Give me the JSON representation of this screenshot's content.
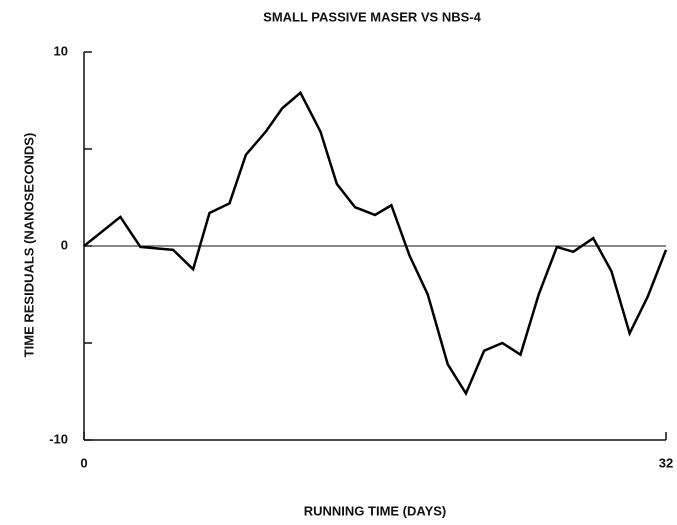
{
  "chart_data": {
    "type": "line",
    "title": "SMALL PASSIVE MASER    VS NBS-4",
    "x_label": "RUNNING TIME (DAYS)",
    "y_label": "TIME RESIDUALS  (NANOSECONDS)",
    "x": [
      0,
      2,
      3.1,
      4.9,
      6,
      6.9,
      8,
      8.9,
      10,
      10.9,
      11.9,
      13,
      13.9,
      14.9,
      16,
      16.9,
      17.9,
      18.9,
      20,
      21,
      22,
      23,
      24,
      25,
      26,
      26.9,
      28,
      29,
      30,
      31,
      32
    ],
    "series": [
      {
        "name": "residuals",
        "color": "#000000",
        "values": [
          0,
          1.5,
          -0.05,
          -0.2,
          -1.2,
          1.7,
          2.2,
          4.7,
          5.9,
          7.1,
          7.9,
          5.9,
          3.2,
          2.0,
          1.6,
          2.1,
          -0.5,
          -2.5,
          -6.1,
          -7.6,
          -5.4,
          -5.0,
          -5.6,
          -2.5,
          -0.05,
          -0.3,
          0.4,
          -1.3,
          -4.5,
          -2.6,
          -0.2
        ]
      }
    ],
    "xlim": [
      0,
      32
    ],
    "xticks": [
      0,
      32
    ],
    "ylim": [
      -10,
      10
    ],
    "yticks": [
      -10,
      0,
      10
    ],
    "minor_yticks": [
      -5,
      5
    ],
    "zero_line": true
  }
}
